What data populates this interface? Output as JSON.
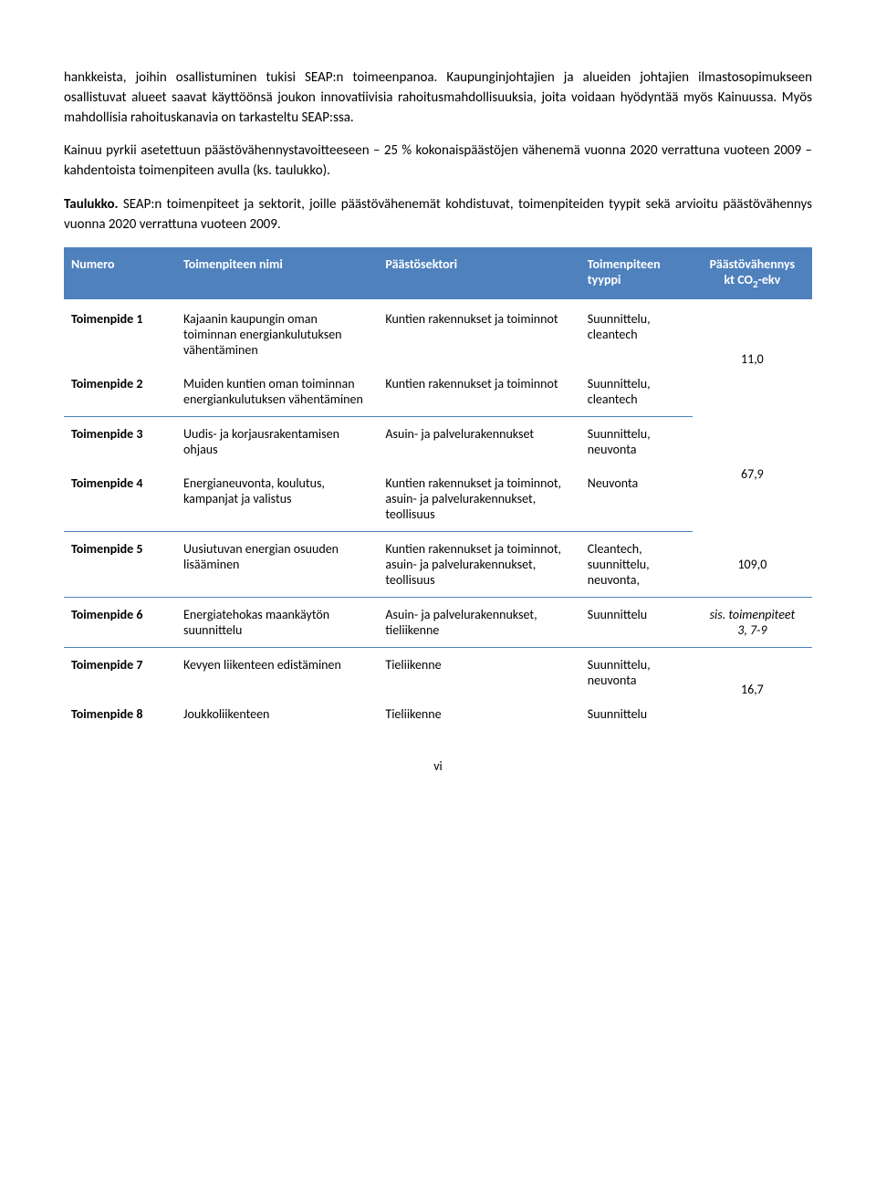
{
  "paragraphs": {
    "p1": "hankkeista, joihin osallistuminen tukisi SEAP:n toimeenpanoa. Kaupunginjohtajien ja alueiden johtajien ilmastosopimukseen osallistuvat alueet saavat käyttöönsä joukon innovatiivisia rahoitusmahdollisuuksia, joita voidaan hyödyntää myös Kainuussa. Myös mahdollisia rahoituskanavia on tarkasteltu SEAP:ssa.",
    "p2": "Kainuu pyrkii asetettuun päästövähennystavoitteeseen – 25 % kokonaispäästöjen vähenemä vuonna 2020 verrattuna vuoteen 2009 – kahdentoista toimenpiteen avulla (ks. taulukko).",
    "p3_label": "Taulukko.",
    "p3_rest": " SEAP:n toimenpiteet ja sektorit, joille päästövähenemät kohdistuvat, toimenpiteiden tyypit sekä arvioitu päästövähennys vuonna 2020 verrattuna vuoteen 2009."
  },
  "table": {
    "headers": {
      "num": "Numero",
      "name": "Toimenpiteen nimi",
      "sector": "Päästösektori",
      "type": "Toimenpiteen tyyppi",
      "red_l1": "Päästövähennys",
      "red_l2": "kt CO",
      "red_l3": "-ekv"
    },
    "rows": [
      {
        "num": "Toimenpide 1",
        "name": "Kajaanin kaupungin oman toiminnan energiankulutuksen vähentäminen",
        "sector": "Kuntien rakennukset ja toiminnot",
        "type": "Suunnittelu, cleantech"
      },
      {
        "num": "Toimenpide 2",
        "name": "Muiden kuntien oman toiminnan energiankulutuksen vähentäminen",
        "sector": "Kuntien rakennukset ja toiminnot",
        "type": "Suunnittelu, cleantech"
      },
      {
        "num": "Toimenpide 3",
        "name": "Uudis- ja korjausrakentamisen ohjaus",
        "sector": "Asuin- ja palvelurakennukset",
        "type": "Suunnittelu, neuvonta"
      },
      {
        "num": "Toimenpide 4",
        "name": "Energianeuvonta, koulutus, kampanjat ja valistus",
        "sector": "Kuntien rakennukset ja toiminnot, asuin- ja palvelurakennukset, teollisuus",
        "type": "Neuvonta"
      },
      {
        "num": "Toimenpide 5",
        "name": "Uusiutuvan energian osuuden lisääminen",
        "sector": "Kuntien rakennukset ja toiminnot, asuin- ja palvelurakennukset, teollisuus",
        "type": "Cleantech, suunnittelu, neuvonta,"
      },
      {
        "num": "Toimenpide 6",
        "name": "Energiatehokas maankäytön suunnittelu",
        "sector": "Asuin- ja palvelurakennukset, tieliikenne",
        "type": "Suunnittelu"
      },
      {
        "num": "Toimenpide 7",
        "name": "Kevyen liikenteen edistäminen",
        "sector": "Tieliikenne",
        "type": "Suunnittelu, neuvonta"
      },
      {
        "num": "Toimenpide 8",
        "name": "Joukkoliikenteen",
        "sector": "Tieliikenne",
        "type": "Suunnittelu"
      }
    ],
    "reductions": {
      "g1": "11,0",
      "g2": "67,9",
      "g3": "109,0",
      "g4_l1": "sis. toimenpiteet",
      "g4_l2": "3, 7-9",
      "g5": "16,7"
    }
  },
  "page_num": "vi"
}
